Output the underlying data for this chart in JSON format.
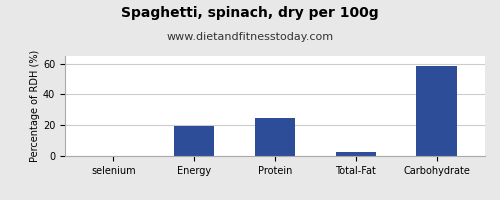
{
  "title": "Spaghetti, spinach, dry per 100g",
  "subtitle": "www.dietandfitnesstoday.com",
  "categories": [
    "selenium",
    "Energy",
    "Protein",
    "Total-Fat",
    "Carbohydrate"
  ],
  "values": [
    0.2,
    19.5,
    25.0,
    2.5,
    58.5
  ],
  "bar_color": "#2e4d99",
  "ylabel": "Percentage of RDH (%)",
  "ylim": [
    0,
    65
  ],
  "yticks": [
    0,
    20,
    40,
    60
  ],
  "title_fontsize": 10,
  "subtitle_fontsize": 8,
  "ylabel_fontsize": 7,
  "tick_fontsize": 7,
  "background_color": "#e8e8e8",
  "plot_bg_color": "#ffffff",
  "border_color": "#aaaaaa"
}
